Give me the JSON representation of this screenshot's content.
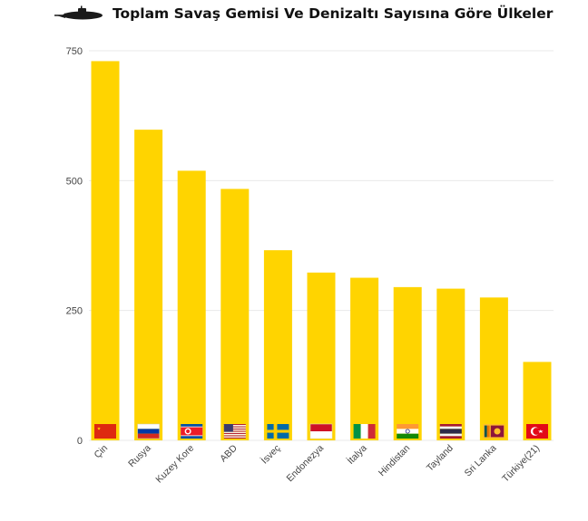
{
  "title": "Toplam Savaş Gemisi Ve Denizaltı Sayısına Göre Ülkeler",
  "title_icon": "submarine-icon",
  "colors": {
    "bar": "#FFD400",
    "grid": "#e9e9e9",
    "text": "#444444"
  },
  "chart_data": {
    "type": "bar",
    "title": "Toplam Savaş Gemisi Ve Denizaltı Sayısına Göre Ülkeler",
    "categories": [
      "Çin",
      "Rusya",
      "Kuzey Kore",
      "ABD",
      "İsveç",
      "Endonezya",
      "İtalya",
      "Hindistan",
      "Tayland",
      "Sri Lanka",
      "Türkiye(21)"
    ],
    "values": [
      730,
      598,
      519,
      484,
      366,
      323,
      313,
      295,
      292,
      275,
      151
    ],
    "flags": [
      "china-flag",
      "russia-flag",
      "north-korea-flag",
      "usa-flag",
      "sweden-flag",
      "indonesia-flag",
      "italy-flag",
      "india-flag",
      "thailand-flag",
      "sri-lanka-flag",
      "turkey-flag"
    ],
    "yticks": [
      0,
      250,
      500,
      750
    ],
    "ylim": [
      0,
      750
    ],
    "xlabel": "",
    "ylabel": "",
    "grid": true,
    "legend": "none"
  }
}
